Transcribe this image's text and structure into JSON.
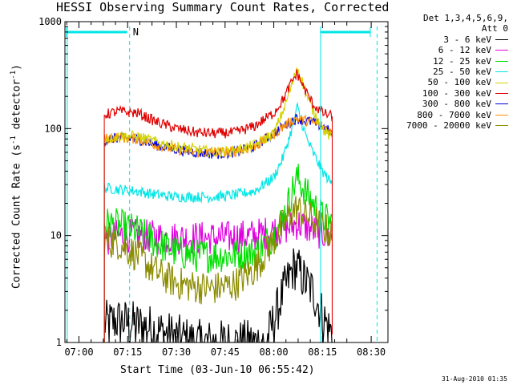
{
  "chart_data": {
    "type": "line",
    "title": "HESSI Observing Summary Count Rates, Corrected",
    "xlabel": "Start Time (03-Jun-10 06:55:42)",
    "ylabel_main": "Corrected Count Rate (s",
    "ylabel_sup1": "-1",
    "ylabel_mid": " detector",
    "ylabel_sup2": "-1",
    "ylabel_end": ")",
    "footer": "31-Aug-2010 01:35",
    "xlim": [
      6.928,
      8.586
    ],
    "ylim": [
      1,
      1000
    ],
    "yscale": "log",
    "xticks": [
      {
        "value": 7.0,
        "label": "07:00"
      },
      {
        "value": 7.25,
        "label": "07:15"
      },
      {
        "value": 7.5,
        "label": "07:30"
      },
      {
        "value": 7.75,
        "label": "07:45"
      },
      {
        "value": 8.0,
        "label": "08:00"
      },
      {
        "value": 8.25,
        "label": "08:15"
      },
      {
        "value": 8.5,
        "label": "08:30"
      }
    ],
    "yticks": [
      {
        "value": 1,
        "label": "1"
      },
      {
        "value": 10,
        "label": "10"
      },
      {
        "value": 100,
        "label": "100"
      },
      {
        "value": 1000,
        "label": "1000"
      }
    ],
    "legend_header": [
      "Det 1,3,4,5,6,9,",
      "Att 0"
    ],
    "series": [
      {
        "name": "3 - 6 keV",
        "color": "#000000",
        "x": [
          7.13,
          7.2,
          7.28,
          7.36,
          7.45,
          7.6,
          7.75,
          7.9,
          7.96,
          8.0,
          8.05,
          8.1,
          8.12,
          8.15,
          8.2,
          8.27,
          8.3
        ],
        "y": [
          1.5,
          1.6,
          1.5,
          1.4,
          1.2,
          1,
          1,
          1,
          1,
          1.6,
          3,
          5,
          5,
          4,
          3,
          1.5,
          1.2
        ]
      },
      {
        "name": "6 - 12 keV",
        "color": "#e000e0",
        "x": [
          7.13,
          7.2,
          7.3,
          7.45,
          7.6,
          7.75,
          7.9,
          8.0,
          8.08,
          8.12,
          8.17,
          8.22,
          8.28,
          8.3
        ],
        "y": [
          9,
          10,
          10,
          9.5,
          9.5,
          9.5,
          10,
          11,
          12,
          13,
          12,
          11,
          10,
          9.5
        ]
      },
      {
        "name": "12 - 25 keV",
        "color": "#00e000",
        "x": [
          7.13,
          7.2,
          7.3,
          7.4,
          7.5,
          7.6,
          7.7,
          7.8,
          7.9,
          8.0,
          8.05,
          8.1,
          8.12,
          8.15,
          8.2,
          8.25,
          8.3
        ],
        "y": [
          13,
          12.5,
          11,
          8.5,
          7,
          6.5,
          6.5,
          6.5,
          7,
          10,
          15,
          28,
          35,
          28,
          20,
          15,
          13
        ]
      },
      {
        "name": "25 - 50 keV",
        "color": "#00e6e6",
        "x": [
          7.13,
          7.2,
          7.3,
          7.4,
          7.5,
          7.6,
          7.7,
          7.8,
          7.9,
          8.0,
          8.05,
          8.1,
          8.12,
          8.14,
          8.17,
          8.2,
          8.25,
          8.3
        ],
        "y": [
          28,
          27,
          26,
          24,
          23,
          23,
          23,
          24,
          26,
          35,
          55,
          110,
          160,
          120,
          80,
          60,
          40,
          30
        ]
      },
      {
        "name": "50 - 100 keV",
        "color": "#d4d400",
        "x": [
          7.13,
          7.2,
          7.3,
          7.4,
          7.5,
          7.6,
          7.7,
          7.8,
          7.9,
          8.0,
          8.05,
          8.1,
          8.12,
          8.14,
          8.17,
          8.2,
          8.25,
          8.3
        ],
        "y": [
          80,
          85,
          85,
          75,
          68,
          64,
          60,
          62,
          70,
          90,
          150,
          280,
          380,
          300,
          200,
          150,
          100,
          80
        ]
      },
      {
        "name": "100 - 300 keV",
        "color": "#e00000",
        "x": [
          7.13,
          7.2,
          7.3,
          7.4,
          7.5,
          7.6,
          7.7,
          7.8,
          7.9,
          8.0,
          8.05,
          8.1,
          8.12,
          8.15,
          8.2,
          8.25,
          8.3
        ],
        "y": [
          135,
          145,
          140,
          115,
          100,
          92,
          90,
          92,
          105,
          140,
          190,
          290,
          330,
          250,
          170,
          140,
          130
        ]
      },
      {
        "name": "300 - 800 keV",
        "color": "#0000e0",
        "x": [
          7.13,
          7.2,
          7.3,
          7.4,
          7.5,
          7.6,
          7.7,
          7.8,
          7.9,
          8.0,
          8.05,
          8.1,
          8.12,
          8.15,
          8.2,
          8.25,
          8.3
        ],
        "y": [
          78,
          82,
          80,
          70,
          64,
          60,
          58,
          60,
          68,
          90,
          105,
          120,
          125,
          120,
          115,
          105,
          90
        ]
      },
      {
        "name": "800 - 7000 keV",
        "color": "#ff8c00",
        "x": [
          7.13,
          7.2,
          7.3,
          7.4,
          7.5,
          7.6,
          7.7,
          7.8,
          7.9,
          8.0,
          8.05,
          8.1,
          8.12,
          8.15,
          8.2,
          8.25,
          8.3
        ],
        "y": [
          80,
          83,
          80,
          70,
          64,
          60,
          60,
          61,
          68,
          88,
          105,
          120,
          125,
          120,
          115,
          105,
          90
        ]
      },
      {
        "name": "7000 - 20000 keV",
        "color": "#8c8c00",
        "x": [
          7.13,
          7.2,
          7.3,
          7.4,
          7.5,
          7.6,
          7.7,
          7.8,
          7.9,
          8.0,
          8.05,
          8.1,
          8.12,
          8.15,
          8.2,
          8.25,
          8.3
        ],
        "y": [
          9,
          8.5,
          6.5,
          4.5,
          3.6,
          3.3,
          3.2,
          3.5,
          4.8,
          9,
          13,
          17,
          18,
          16,
          14,
          12,
          10
        ]
      }
    ],
    "flags": [
      {
        "label": "N",
        "x": 7.26
      },
      {
        "label": "",
        "x": 8.23
      }
    ],
    "flag_color": "#00e6e6",
    "dashed_lines_x": [
      7.26,
      8.53
    ],
    "solid_lines_x": [
      6.94,
      8.24
    ]
  }
}
